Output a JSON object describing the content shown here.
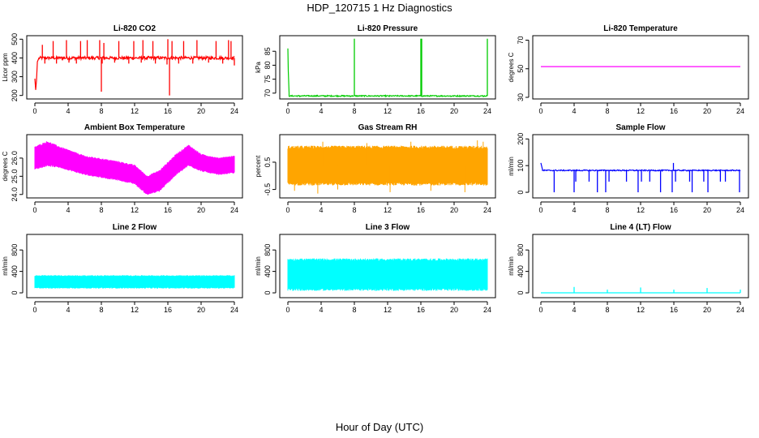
{
  "figure": {
    "title": "HDP_120715  1 Hz Diagnostics",
    "xlabel": "Hour of Day (UTC)"
  },
  "chart_data": [
    {
      "type": "line",
      "title": "Li-820 CO2",
      "ylabel": "Licor ppm",
      "color": "#ff0000",
      "xlim": [
        0,
        24
      ],
      "ylim": [
        190,
        510
      ],
      "xticks": [
        0,
        4,
        8,
        12,
        16,
        20,
        24
      ],
      "yticks": [
        200,
        300,
        400,
        500
      ],
      "baseline": 400,
      "noise": 8,
      "start_series": [
        [
          0,
          290
        ],
        [
          0.1,
          230
        ],
        [
          0.2,
          280
        ],
        [
          0.3,
          380
        ],
        [
          0.5,
          400
        ]
      ],
      "spikes": [
        [
          0.9,
          470
        ],
        [
          2.2,
          490
        ],
        [
          3.8,
          495
        ],
        [
          5.5,
          490
        ],
        [
          6.3,
          495
        ],
        [
          7.8,
          495
        ],
        [
          8.0,
          220
        ],
        [
          8.3,
          480
        ],
        [
          10.1,
          490
        ],
        [
          11.9,
          490
        ],
        [
          13.0,
          495
        ],
        [
          14.2,
          490
        ],
        [
          16.0,
          500
        ],
        [
          16.2,
          200
        ],
        [
          16.5,
          490
        ],
        [
          17.9,
          490
        ],
        [
          19.5,
          495
        ],
        [
          21.8,
          490
        ],
        [
          23.3,
          495
        ],
        [
          23.6,
          490
        ],
        [
          24.0,
          360
        ]
      ],
      "dips": [
        [
          1.2,
          370
        ],
        [
          2.6,
          370
        ],
        [
          4.1,
          375
        ],
        [
          5.0,
          370
        ],
        [
          8.1,
          370
        ],
        [
          9.6,
          375
        ],
        [
          11.3,
          370
        ],
        [
          12.8,
          375
        ],
        [
          14.5,
          370
        ],
        [
          15.9,
          365
        ],
        [
          17.3,
          370
        ],
        [
          19.0,
          370
        ],
        [
          20.9,
          375
        ],
        [
          22.6,
          370
        ]
      ]
    },
    {
      "type": "line",
      "title": "Li-820 Pressure",
      "ylabel": "kPa",
      "color": "#00cc00",
      "xlim": [
        0,
        24
      ],
      "ylim": [
        68.5,
        90
      ],
      "xticks": [
        0,
        4,
        8,
        12,
        16,
        20,
        24
      ],
      "yticks": [
        70,
        75,
        80,
        85
      ],
      "baseline": 69.0,
      "noise": 0.2,
      "start_series": [
        [
          0,
          86
        ],
        [
          0.05,
          78
        ],
        [
          0.15,
          70
        ]
      ],
      "spikes": [
        [
          8.0,
          89.5
        ],
        [
          16.0,
          89.5
        ],
        [
          16.1,
          89.5
        ],
        [
          24.0,
          89.5
        ]
      ],
      "dips": [
        [
          1.4,
          68.6
        ],
        [
          4.5,
          68.6
        ],
        [
          7.5,
          68.6
        ],
        [
          12.2,
          68.6
        ],
        [
          19.6,
          68.6
        ],
        [
          23.5,
          68.6
        ]
      ]
    },
    {
      "type": "line",
      "title": "Li-820 Temperature",
      "ylabel": "degrees C",
      "color": "#ff00ff",
      "xlim": [
        0,
        24
      ],
      "ylim": [
        30,
        72
      ],
      "xticks": [
        0,
        4,
        8,
        12,
        16,
        20,
        24
      ],
      "yticks": [
        30,
        50,
        70
      ],
      "baseline": 51.5,
      "noise": 0,
      "start_series": [],
      "spikes": [],
      "dips": []
    },
    {
      "type": "band",
      "title": "Ambient Box Temperature",
      "ylabel": "degrees C",
      "color": "#ff00ff",
      "xlim": [
        0,
        24
      ],
      "ylim": [
        23.9,
        27.2
      ],
      "xticks": [
        0,
        4,
        8,
        12,
        16,
        20,
        24
      ],
      "yticks": [
        24.0,
        25.0,
        26.0
      ],
      "yticklabels": [
        "24.0",
        "25.0",
        "26.0"
      ],
      "envelope": [
        [
          0,
          25.4,
          26.6
        ],
        [
          1.5,
          25.6,
          26.9
        ],
        [
          3,
          25.5,
          26.6
        ],
        [
          6,
          25.1,
          26.1
        ],
        [
          10,
          24.8,
          25.8
        ],
        [
          12,
          24.6,
          25.6
        ],
        [
          13.5,
          24.0,
          25.0
        ],
        [
          15,
          24.2,
          25.3
        ],
        [
          17,
          25.1,
          26.2
        ],
        [
          18.5,
          25.6,
          26.7
        ],
        [
          20,
          25.3,
          26.2
        ],
        [
          22,
          25.1,
          26.0
        ],
        [
          24,
          25.2,
          26.1
        ]
      ]
    },
    {
      "type": "band",
      "title": "Gas Stream RH",
      "ylabel": "percent",
      "color": "#ffa500",
      "xlim": [
        0,
        24
      ],
      "ylim": [
        -0.75,
        1.45
      ],
      "xticks": [
        0,
        4,
        8,
        12,
        16,
        20,
        24
      ],
      "yticks": [
        -0.5,
        0.5
      ],
      "yticklabels": [
        "-0.5",
        "0.5"
      ],
      "envelope": [
        [
          0,
          -0.3,
          1.05
        ],
        [
          24,
          -0.3,
          1.05
        ]
      ],
      "outliers": [
        [
          0.8,
          -0.55
        ],
        [
          3.6,
          -0.65
        ],
        [
          4.2,
          1.25
        ],
        [
          6.0,
          -0.5
        ],
        [
          9.5,
          1.2
        ],
        [
          12.3,
          -0.6
        ],
        [
          14.8,
          1.25
        ],
        [
          17.2,
          -0.55
        ],
        [
          21.3,
          -0.6
        ],
        [
          22.8,
          1.3
        ],
        [
          23.5,
          1.25
        ]
      ]
    },
    {
      "type": "line",
      "title": "Sample Flow",
      "ylabel": "ml/min",
      "color": "#0000ff",
      "xlim": [
        0,
        24
      ],
      "ylim": [
        -15,
        210
      ],
      "xticks": [
        0,
        4,
        8,
        12,
        16,
        20,
        24
      ],
      "yticks": [
        0,
        100,
        200
      ],
      "baseline": 82,
      "noise": 2,
      "start_series": [
        [
          0,
          110
        ],
        [
          0.2,
          85
        ]
      ],
      "spikes": [
        [
          15.95,
          110
        ]
      ],
      "dips": [
        [
          1.6,
          0
        ],
        [
          4.0,
          0
        ],
        [
          4.2,
          40
        ],
        [
          5.8,
          40
        ],
        [
          6.8,
          0
        ],
        [
          7.8,
          0
        ],
        [
          8.2,
          40
        ],
        [
          10.3,
          40
        ],
        [
          11.7,
          0
        ],
        [
          12.1,
          40
        ],
        [
          13.1,
          40
        ],
        [
          14.4,
          0
        ],
        [
          15.8,
          0
        ],
        [
          16.2,
          40
        ],
        [
          17.9,
          40
        ],
        [
          18.2,
          0
        ],
        [
          19.6,
          40
        ],
        [
          20.1,
          0
        ],
        [
          21.6,
          40
        ],
        [
          22.2,
          40
        ],
        [
          23.9,
          0
        ]
      ]
    },
    {
      "type": "band",
      "title": "Line 2 Flow",
      "ylabel": "ml/min",
      "color": "#00ffff",
      "xlim": [
        0,
        24
      ],
      "ylim": [
        -60,
        1060
      ],
      "xticks": [
        0,
        4,
        8,
        12,
        16,
        20,
        24
      ],
      "yticks": [
        0,
        400,
        800
      ],
      "yticklabels": [
        "0",
        "400",
        "800"
      ],
      "envelope": [
        [
          0,
          90,
          320
        ],
        [
          24,
          90,
          320
        ]
      ],
      "gaps": [
        4.0,
        8.0,
        12.0,
        16.0,
        20.0
      ]
    },
    {
      "type": "band",
      "title": "Line 3 Flow",
      "ylabel": "ml/min",
      "color": "#00ffff",
      "xlim": [
        0,
        24
      ],
      "ylim": [
        -60,
        1060
      ],
      "xticks": [
        0,
        4,
        8,
        12,
        16,
        20,
        24
      ],
      "yticks": [
        0,
        400,
        800
      ],
      "yticklabels": [
        "0",
        "400",
        "800"
      ],
      "envelope": [
        [
          0,
          60,
          620
        ],
        [
          24,
          60,
          620
        ]
      ],
      "gaps": [
        4.0,
        8.0,
        12.0,
        16.0,
        20.0
      ]
    },
    {
      "type": "line",
      "title": "Line 4 (LT) Flow",
      "ylabel": "ml/min",
      "color": "#00ffff",
      "xlim": [
        0,
        24
      ],
      "ylim": [
        -60,
        1060
      ],
      "xticks": [
        0,
        4,
        8,
        12,
        16,
        20,
        24
      ],
      "yticks": [
        0,
        400,
        800
      ],
      "baseline": 0,
      "noise": 0,
      "start_series": [],
      "spikes": [
        [
          4.0,
          110
        ],
        [
          8.0,
          60
        ],
        [
          12.0,
          100
        ],
        [
          16.0,
          60
        ],
        [
          20.0,
          90
        ],
        [
          24.0,
          60
        ]
      ],
      "dips": []
    }
  ]
}
